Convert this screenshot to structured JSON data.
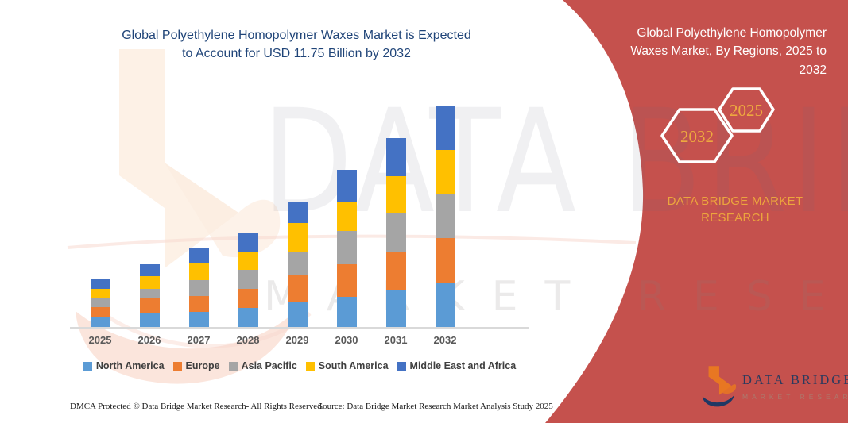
{
  "header": {
    "title_lines": [
      "Global Polyethylene Homopolymer Waxes Market is Expected",
      "to Account for USD 11.75 Billion by 2032"
    ]
  },
  "panel": {
    "title_lines": [
      "Global Polyethylene Homopolymer",
      "Waxes Market, By Regions, 2025 to",
      "2032"
    ],
    "badge_back_year": "2032",
    "badge_front_year": "2025",
    "brand_text": "DATA BRIDGE MARKET RESEARCH"
  },
  "chart_data": {
    "type": "bar",
    "stacked": true,
    "title": "Global Polyethylene Homopolymer Waxes Market is Expected to Account for USD 11.75 Billion by 2032",
    "unit": "USD Billion",
    "categories": [
      "2025",
      "2026",
      "2027",
      "2028",
      "2029",
      "2030",
      "2031",
      "2032"
    ],
    "series": [
      {
        "name": "North America",
        "color": "#5B9BD5",
        "values": [
          0.54,
          0.75,
          0.82,
          1.03,
          1.37,
          1.62,
          2.0,
          2.36
        ]
      },
      {
        "name": "Europe",
        "color": "#ED7D31",
        "values": [
          0.5,
          0.77,
          0.85,
          1.02,
          1.38,
          1.73,
          2.02,
          2.37
        ]
      },
      {
        "name": "Asia Pacific",
        "color": "#A5A5A5",
        "values": [
          0.45,
          0.52,
          0.85,
          1.03,
          1.28,
          1.79,
          2.06,
          2.37
        ]
      },
      {
        "name": "South America",
        "color": "#FFC000",
        "values": [
          0.49,
          0.68,
          0.94,
          0.94,
          1.51,
          1.57,
          1.96,
          2.33
        ]
      },
      {
        "name": "Middle East and Africa",
        "color": "#4472C4",
        "values": [
          0.56,
          0.63,
          0.82,
          1.07,
          1.15,
          1.69,
          2.04,
          2.32
        ]
      }
    ],
    "yearly_totals": [
      2.54,
      3.35,
      4.28,
      5.09,
      6.69,
      8.4,
      10.08,
      11.75
    ],
    "xlabel": "",
    "ylabel": "",
    "y_axis_visible": false,
    "gridlines": false,
    "legend_position": "bottom"
  },
  "watermark": {
    "text1": "DATA BRIDGE",
    "text2": "MARKET RESEARCH"
  },
  "logo": {
    "name": "DATA BRIDGE",
    "tagline": "MARKET RESEARCH"
  },
  "footer": {
    "left": "DMCA Protected © Data Bridge Market Research-  All Rights Reserved.",
    "right": "Source: Data Bridge Market Research  Market Analysis Study 2025"
  },
  "colors": {
    "panel_red": "#C5514D",
    "title_blue": "#1F4478",
    "gold": "#ECA53D",
    "hex_year_gold": "#EEA93F",
    "axis_line": "#D9D9D9",
    "x_label": "#595959",
    "legend_text": "#3F3F3F",
    "logo_navy": "#2B3A5E",
    "logo_orange": "#E87722"
  }
}
